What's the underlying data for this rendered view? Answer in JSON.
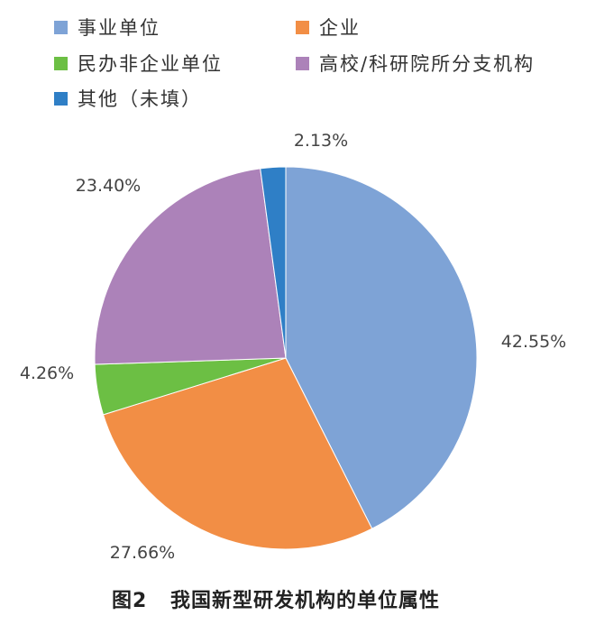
{
  "chart_data": {
    "type": "pie",
    "caption": "图2 我国新型研发机构的单位属性",
    "caption_number": "图2",
    "caption_title": "我国新型研发机构的单位属性",
    "slices": [
      {
        "name": "事业单位",
        "value": 42.55,
        "label": "42.55%",
        "color": "#7ea3d6"
      },
      {
        "name": "企业",
        "value": 27.66,
        "label": "27.66%",
        "color": "#f28e45"
      },
      {
        "name": "民办非企业单位",
        "value": 4.26,
        "label": "4.26%",
        "color": "#6cbf44"
      },
      {
        "name": "高校/科研院所分支机构",
        "value": 23.4,
        "label": "23.40%",
        "color": "#ac82b9"
      },
      {
        "name": "其他（未填）",
        "value": 2.13,
        "label": "2.13%",
        "color": "#2f7fc6"
      }
    ],
    "legend_position": "top",
    "start_angle": "12 o'clock",
    "direction": "clockwise"
  }
}
